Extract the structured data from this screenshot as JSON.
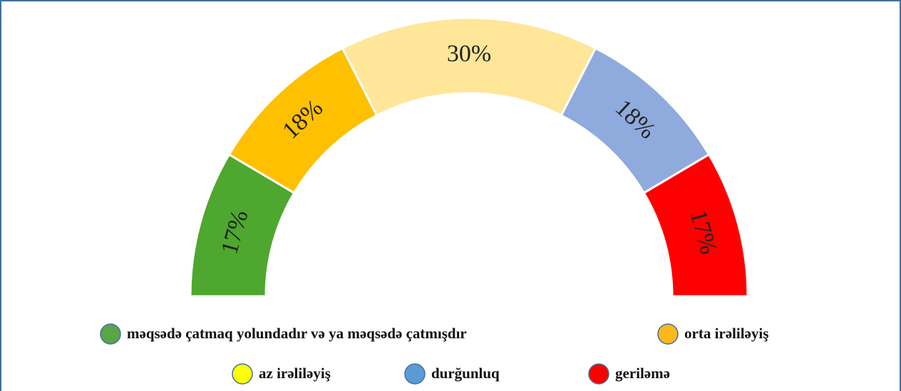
{
  "chart_data": {
    "type": "gauge",
    "categories": [
      "məqsədə çatmaq yolundadır və ya məqsədə çatmışdır",
      "orta irəliləyiş",
      "az irəliləyiş",
      "durğunluq",
      "geriləmə"
    ],
    "values": [
      17,
      18,
      30,
      18,
      17
    ],
    "value_labels": [
      "17%",
      "18%",
      "30%",
      "18%",
      "17%"
    ],
    "colors": [
      "#4ea72e",
      "#ffc000",
      "#ffe699",
      "#8faadc",
      "#ff0000"
    ],
    "legend_colors": [
      "#5aa546",
      "#ffb81c",
      "#ffff00",
      "#5b9bd5",
      "#ff0000"
    ]
  }
}
